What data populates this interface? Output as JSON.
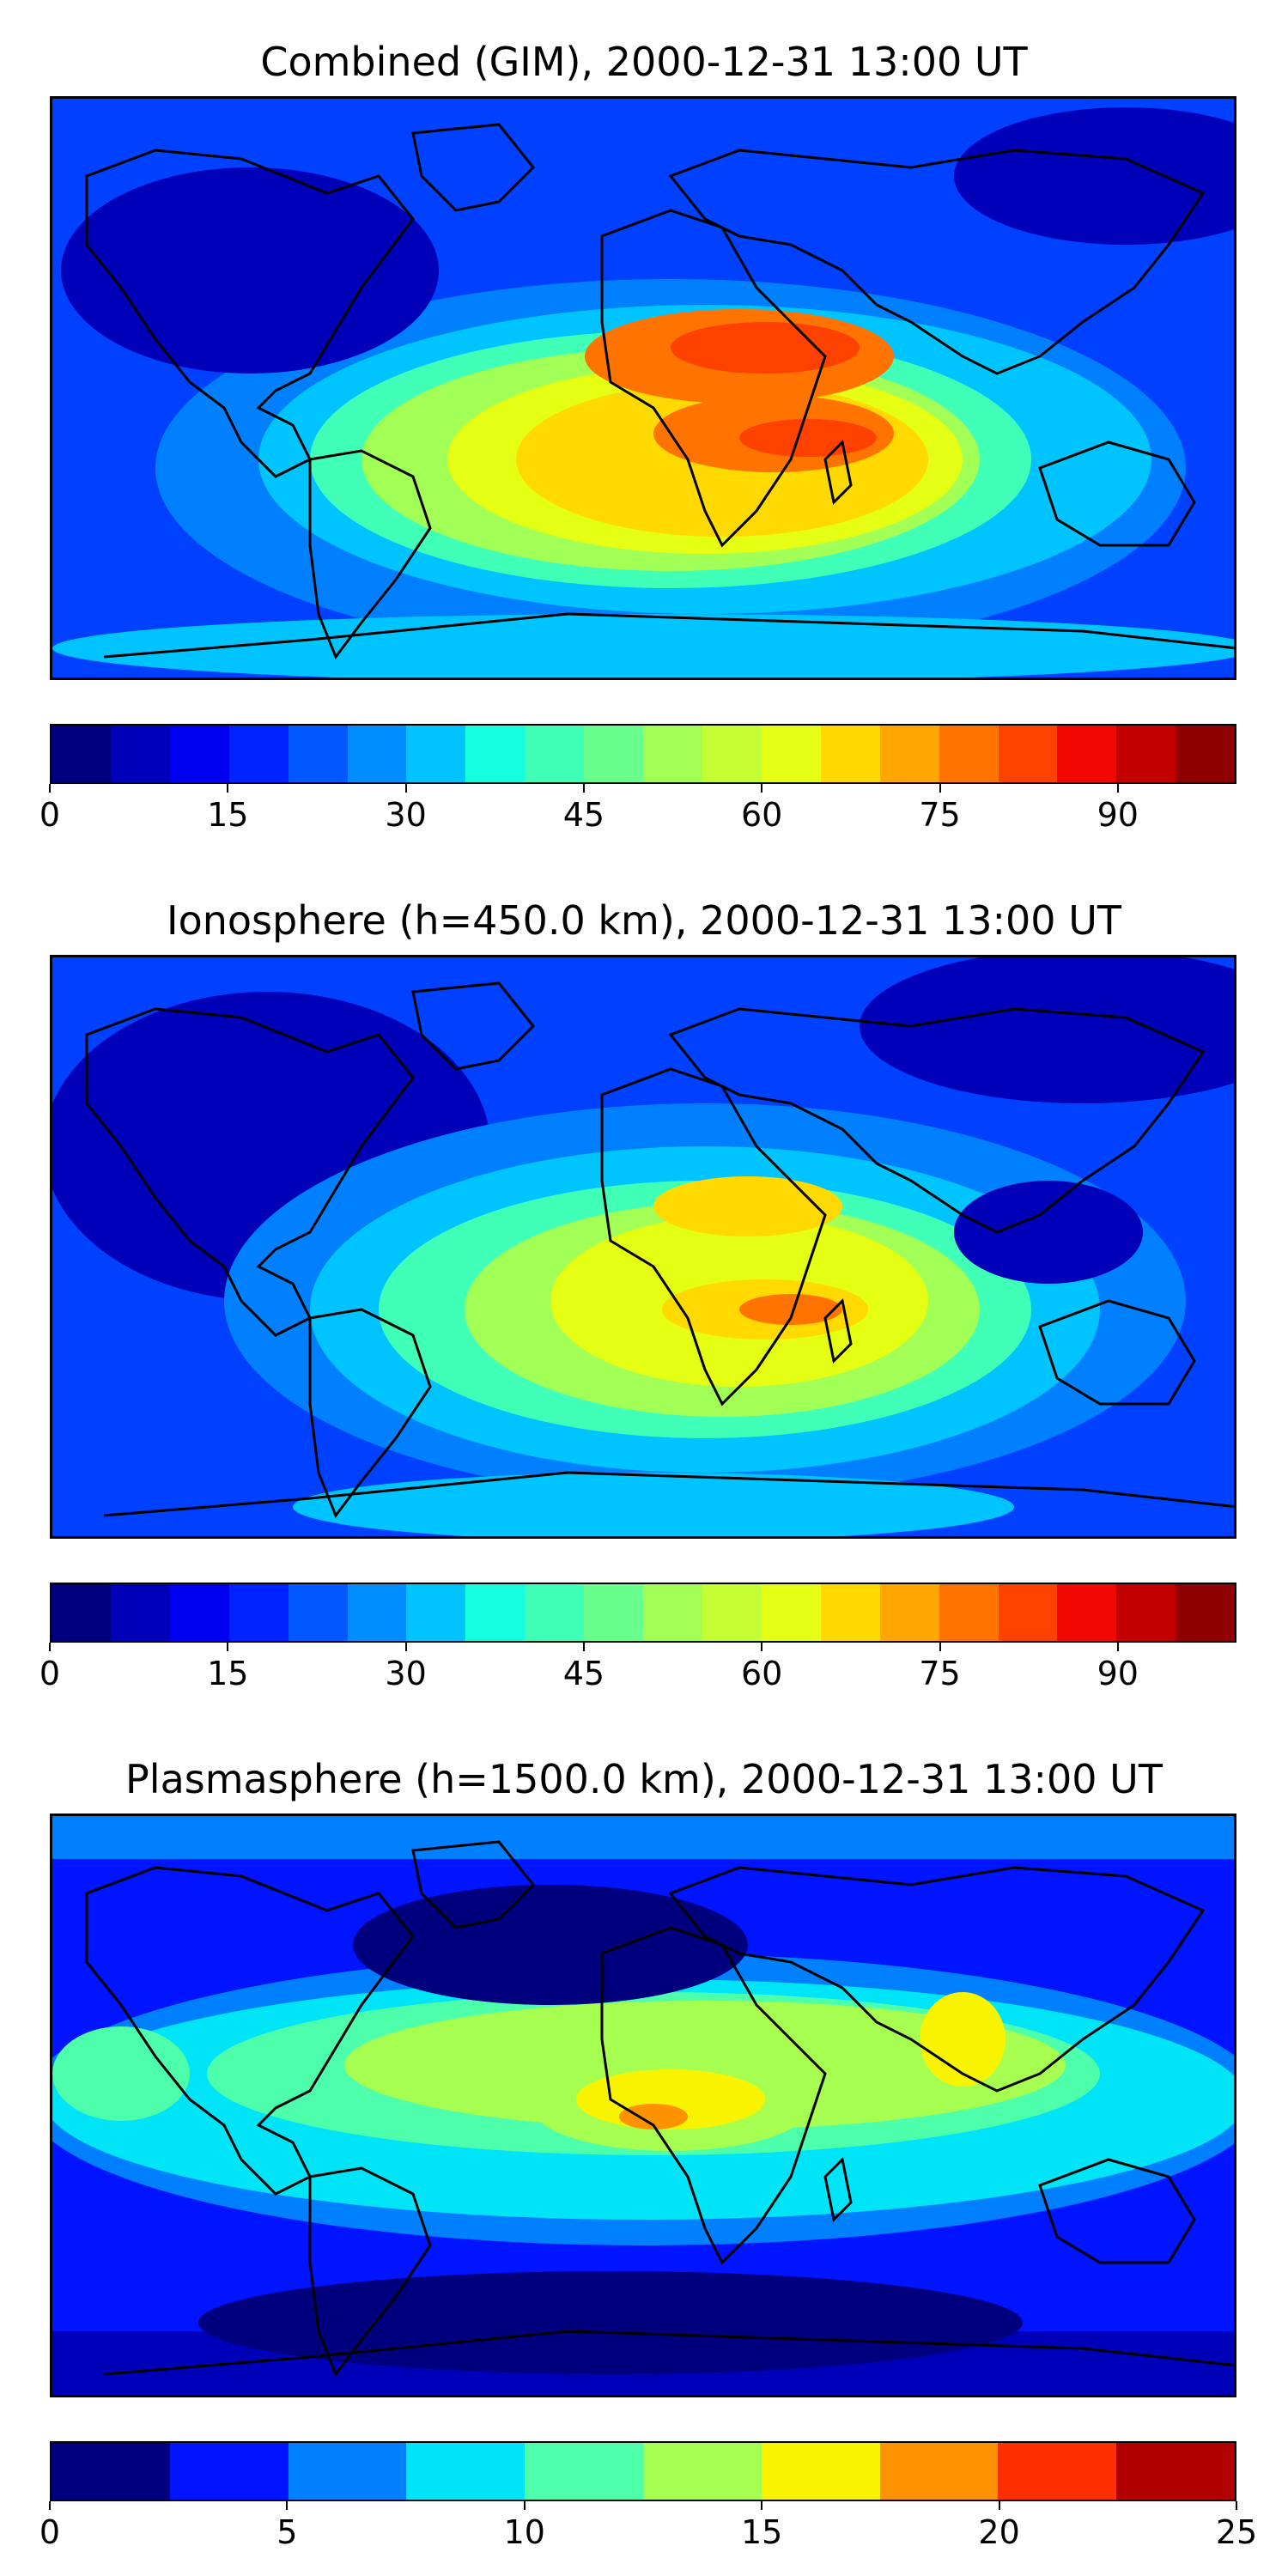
{
  "panels": [
    {
      "title": "Combined (GIM), 2000-12-31 13:00 UT",
      "colorbar": {
        "min": 0,
        "max": 100,
        "step": 5,
        "ticks": [
          "0",
          "15",
          "30",
          "45",
          "60",
          "75",
          "90"
        ],
        "tick_values": [
          0,
          15,
          30,
          45,
          60,
          75,
          90
        ]
      }
    },
    {
      "title": "Ionosphere  (h=450.0 km), 2000-12-31 13:00 UT",
      "colorbar": {
        "min": 0,
        "max": 100,
        "step": 5,
        "ticks": [
          "0",
          "15",
          "30",
          "45",
          "60",
          "75",
          "90"
        ],
        "tick_values": [
          0,
          15,
          30,
          45,
          60,
          75,
          90
        ]
      }
    },
    {
      "title": "Plasmasphere (h=1500.0 km), 2000-12-31 13:00 UT",
      "colorbar": {
        "min": 0,
        "max": 25,
        "step": 2.5,
        "ticks": [
          "0",
          "5",
          "10",
          "15",
          "20",
          "25"
        ],
        "tick_values": [
          0,
          5,
          10,
          15,
          20,
          25
        ]
      }
    }
  ],
  "palette_20": [
    "#00007f",
    "#0000b8",
    "#0000f1",
    "#0022ff",
    "#0058ff",
    "#008eff",
    "#00c4ff",
    "#16ffe1",
    "#40ffb7",
    "#6aff8d",
    "#a1ff56",
    "#c4ff33",
    "#e4ff13",
    "#ffd900",
    "#ffa600",
    "#ff7300",
    "#ff4100",
    "#f10800",
    "#c30000",
    "#8f0000"
  ],
  "palette_10": [
    "#00007f",
    "#0014ff",
    "#0080ff",
    "#00e4f8",
    "#4dffaa",
    "#a6ff50",
    "#f8f400",
    "#ff9200",
    "#ff3000",
    "#b20000"
  ]
}
